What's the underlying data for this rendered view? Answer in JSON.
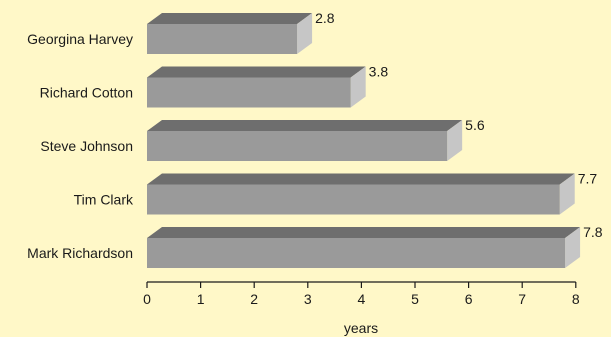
{
  "chart_data": {
    "type": "bar",
    "orientation": "horizontal",
    "style": "3d",
    "categories": [
      "Georgina Harvey",
      "Richard Cotton",
      "Steve Johnson",
      "Tim Clark",
      "Mark Richardson"
    ],
    "values": [
      2.8,
      3.8,
      5.6,
      7.7,
      7.8
    ],
    "value_labels": [
      "2.8",
      "3.8",
      "5.6",
      "7.7",
      "7.8"
    ],
    "xlabel": "years",
    "xlim": [
      0,
      8
    ],
    "x_ticks": [
      "0",
      "1",
      "2",
      "3",
      "4",
      "5",
      "6",
      "7",
      "8"
    ],
    "grid": false,
    "colors": {
      "background": "#fff8c8",
      "bar_front": "#9a9a9a",
      "bar_top": "#6e6e6e",
      "bar_side": "#c6c6c6",
      "axis": "#1a1a1a"
    }
  }
}
